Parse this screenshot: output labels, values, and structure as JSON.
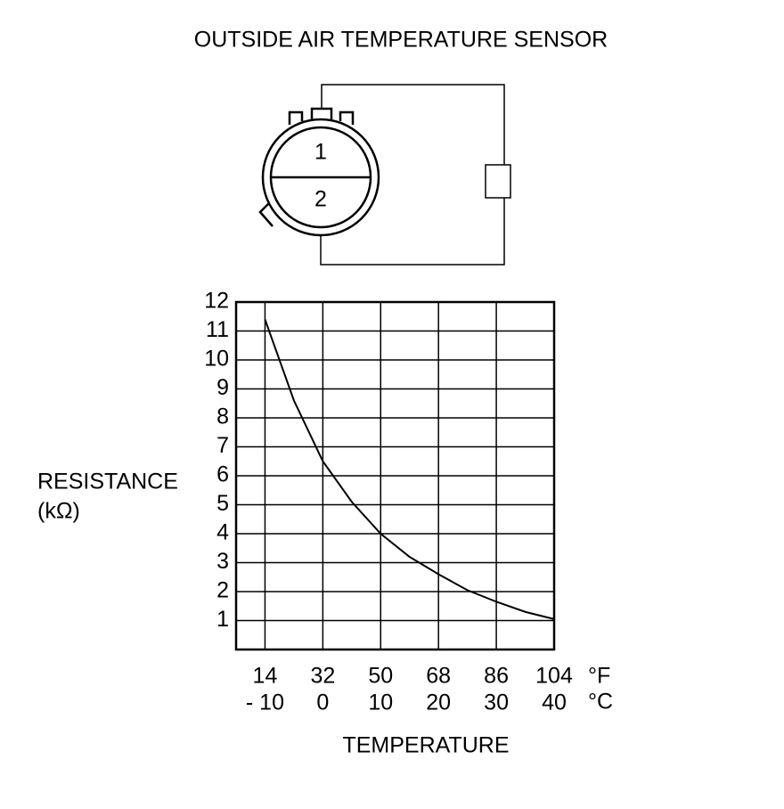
{
  "diagram": {
    "title": "OUTSIDE AIR TEMPERATURE SENSOR",
    "pins": [
      "1",
      "2"
    ]
  },
  "chart_data": {
    "type": "line",
    "ylabel": "RESISTANCE",
    "ylabel_unit": "(kΩ)",
    "xlabel": "TEMPERATURE",
    "x_unit": "°C",
    "x2_unit": "°F",
    "x": [
      -10,
      -5,
      0,
      5,
      10,
      15,
      20,
      25,
      30,
      35,
      40
    ],
    "series": [
      {
        "color": "#000000",
        "values": [
          11.4,
          8.6,
          6.5,
          5.1,
          4.0,
          3.2,
          2.6,
          2.05,
          1.65,
          1.3,
          1.05
        ]
      }
    ],
    "xlim": [
      -15,
      40
    ],
    "xticks": [
      {
        "value": -10,
        "label": "- 10"
      },
      0,
      10,
      20,
      30,
      40
    ],
    "x2lim": [
      5,
      104
    ],
    "x2ticks": [
      14,
      32,
      50,
      68,
      86,
      104
    ],
    "ylim": [
      0,
      12
    ],
    "yticks": [
      1,
      2,
      3,
      4,
      5,
      6,
      7,
      8,
      9,
      10,
      11,
      12
    ],
    "grid": true
  }
}
